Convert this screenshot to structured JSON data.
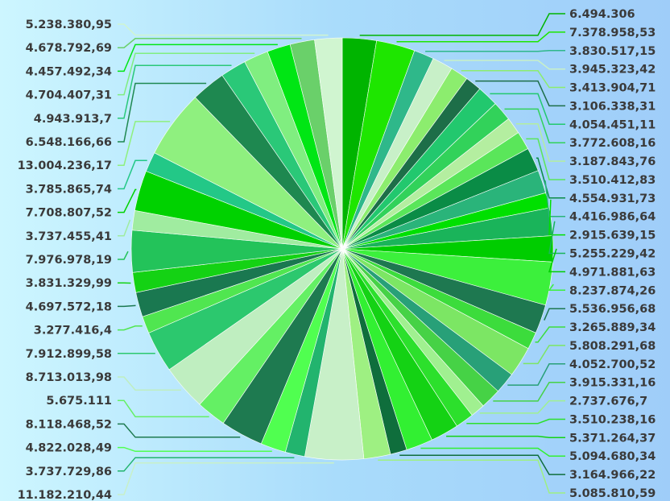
{
  "chart_data": {
    "type": "pie",
    "start_angle_deg": 0,
    "direction": "clockwise",
    "values": [
      6494306,
      7378958.53,
      3830517.15,
      3945323.42,
      3413904.71,
      3106338.31,
      4054451.11,
      3772608.16,
      3187843.76,
      3510412.83,
      4554931.73,
      4416986.64,
      2915639.15,
      5255229.42,
      4971881.63,
      8237874.26,
      5536956.68,
      3265889.34,
      5808291.68,
      4052700.52,
      3915331.16,
      2737676.7,
      3510238.16,
      5371264.37,
      5094680.34,
      3164966.22,
      5085810.59,
      11182210.44,
      3737729.86,
      4822028.49,
      8118468.52,
      5675111,
      8713013.98,
      7912899.58,
      3277416.4,
      4697572.18,
      3831329.99,
      7976978.19,
      3737455.41,
      7708807.52,
      3785865.74,
      13004236.17,
      6548166.66,
      4943913.7,
      4704407.31,
      4457492.34,
      4678792.69,
      5238380.95
    ],
    "labels": [
      "6.494.306",
      "7.378.958,53",
      "3.830.517,15",
      "3.945.323,42",
      "3.413.904,71",
      "3.106.338,31",
      "4.054.451,11",
      "3.772.608,16",
      "3.187.843,76",
      "3.510.412,83",
      "4.554.931,73",
      "4.416.986,64",
      "2.915.639,15",
      "5.255.229,42",
      "4.971.881,63",
      "8.237.874,26",
      "5.536.956,68",
      "3.265.889,34",
      "5.808.291,68",
      "4.052.700,52",
      "3.915.331,16",
      "2.737.676,7",
      "3.510.238,16",
      "5.371.264,37",
      "5.094.680,34",
      "3.164.966,22",
      "5.085.810,59",
      "11.182.210,44",
      "3.737.729,86",
      "4.822.028,49",
      "8.118.468,52",
      "5.675.111",
      "8.713.013,98",
      "7.912.899,58",
      "3.277.416,4",
      "4.697.572,18",
      "3.831.329,99",
      "7.976.978,19",
      "3.737.455,41",
      "7.708.807,52",
      "3.785.865,74",
      "13.004.236,17",
      "6.548.166,66",
      "4.943.913,7",
      "4.704.407,31",
      "4.457.492,34",
      "4.678.792,69",
      "5.238.380,95"
    ],
    "colors": [
      "#00b400",
      "#1ee600",
      "#2fb88a",
      "#c8f0c8",
      "#8ced6e",
      "#1d6e48",
      "#22c86e",
      "#32d25a",
      "#b4eea0",
      "#5ae65a",
      "#0a8c46",
      "#2ab47a",
      "#00e000",
      "#1ab45a",
      "#00cd00",
      "#3cf03c",
      "#1e7850",
      "#3cdc3c",
      "#7ce664",
      "#28a078",
      "#46d246",
      "#a0f090",
      "#2ce02c",
      "#14d214",
      "#32f032",
      "#0f6e3c",
      "#9ef082",
      "#c8f0c8",
      "#22b46e",
      "#50ff50",
      "#1e7a50",
      "#64f064",
      "#bfeec0",
      "#2cc86e",
      "#50e650",
      "#1a7850",
      "#14d214",
      "#23c35a",
      "#a0eca0",
      "#00d200",
      "#23c887",
      "#8ff07f",
      "#1e8850",
      "#2ac878",
      "#80ee80",
      "#00e614",
      "#6ad06a",
      "#d0f5d0"
    ],
    "legend": "none",
    "legend_labels": "leader lines to slice labels on both sides"
  }
}
